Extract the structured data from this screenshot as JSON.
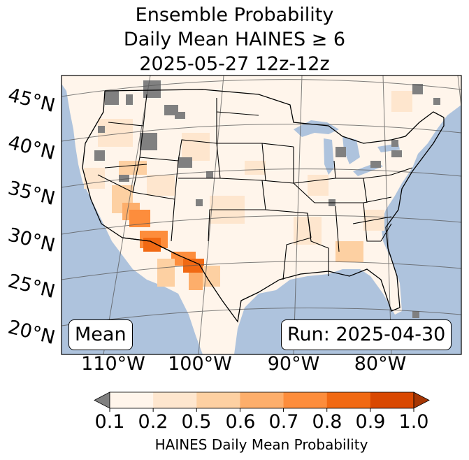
{
  "title_lines": [
    "Ensemble Probability",
    "Daily Mean HAINES ≥ 6",
    "2025-05-27 12z-12z"
  ],
  "map": {
    "lat_labels": [
      "45°N",
      "40°N",
      "35°N",
      "30°N",
      "25°N",
      "20°N"
    ],
    "lon_labels": [
      "110°W",
      "100°W",
      "90°W",
      "80°W"
    ],
    "stat_label": "Mean",
    "run_label": "Run: 2025-04-30",
    "colors": {
      "ocean": "#aec3dd",
      "land_no_data": "#ffffff",
      "missing": "#808080",
      "levels": [
        "#fff5eb",
        "#fee6ce",
        "#fdd0a2",
        "#fdae6b",
        "#fd8d3c",
        "#f16913",
        "#d94801",
        "#a63603"
      ]
    }
  },
  "colorbar": {
    "ticks": [
      "0.1",
      "0.2",
      "0.5",
      "0.6",
      "0.7",
      "0.8",
      "0.9",
      "1.0"
    ],
    "label": "HAINES Daily Mean Probability"
  }
}
